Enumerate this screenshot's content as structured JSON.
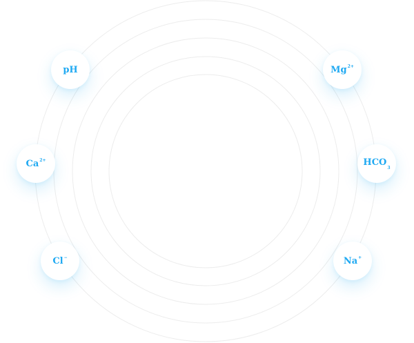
{
  "ions": [
    {
      "id": "ph",
      "base": "pH",
      "sup": "",
      "sub": ""
    },
    {
      "id": "mg",
      "base": "Mg",
      "sup": "2+",
      "sub": ""
    },
    {
      "id": "ca",
      "base": "Ca",
      "sup": "2+",
      "sub": ""
    },
    {
      "id": "hco3",
      "base": "HCO",
      "sup": "",
      "sub": "3"
    },
    {
      "id": "cl",
      "base": "Cl",
      "sup": "−",
      "sub": ""
    },
    {
      "id": "na",
      "base": "Na",
      "sup": "+",
      "sub": ""
    }
  ],
  "colors": {
    "accent": "#1fa9f2",
    "ring": "#ececec",
    "background": "#ffffff"
  }
}
